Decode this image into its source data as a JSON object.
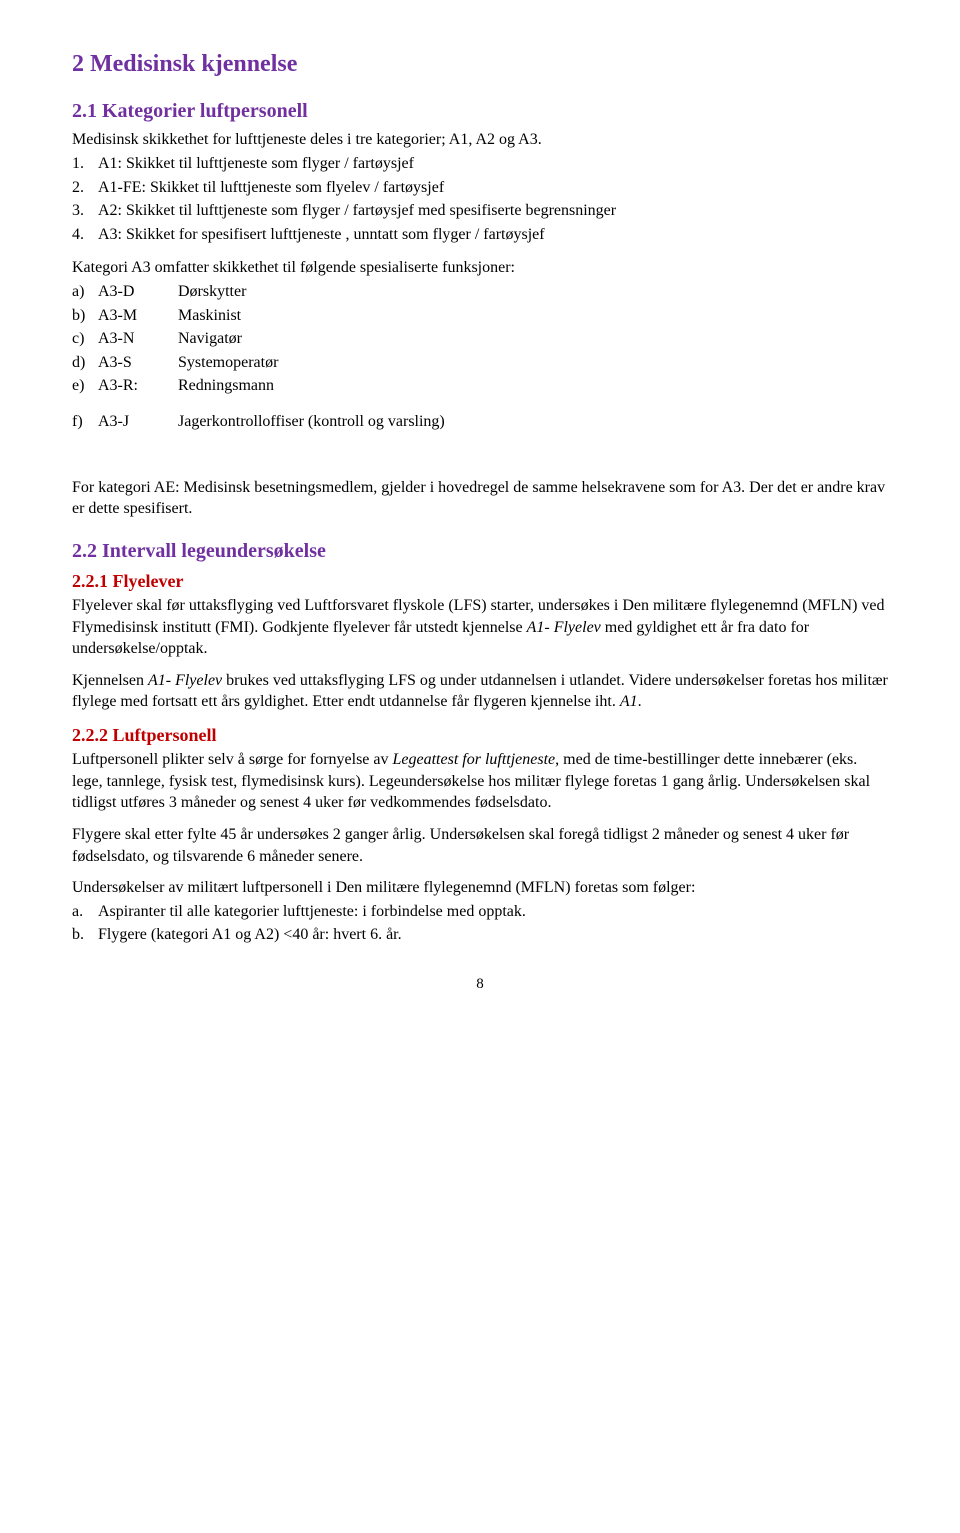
{
  "heading_main": "2 Medisinsk kjennelse",
  "section_2_1": {
    "title": "2.1 Kategorier luftpersonell",
    "intro": "Medisinsk skikkethet for lufttjeneste deles i tre kategorier; A1, A2 og A3.",
    "items": [
      {
        "num": "1.",
        "text": "A1: Skikket til lufttjeneste som flyger / fartøysjef"
      },
      {
        "num": "2.",
        "text": "A1-FE: Skikket til lufttjeneste som flyelev / fartøysjef"
      },
      {
        "num": "3.",
        "text": "A2: Skikket til lufttjeneste som flyger / fartøysjef med spesifiserte begrensninger"
      },
      {
        "num": "4.",
        "text": "A3: Skikket for spesifisert lufttjeneste , unntatt som flyger / fartøysjef"
      }
    ],
    "func_intro": "Kategori A3 omfatter skikkethet til følgende spesialiserte funksjoner:",
    "funcs": [
      {
        "letter": "a)",
        "code": "A3-D",
        "role": "Dørskytter"
      },
      {
        "letter": "b)",
        "code": "A3-M",
        "role": "Maskinist"
      },
      {
        "letter": "c)",
        "code": "A3-N",
        "role": "Navigatør"
      },
      {
        "letter": "d)",
        "code": "A3-S",
        "role": "Systemoperatør"
      },
      {
        "letter": "e)",
        "code": "A3-R:",
        "role": "Redningsmann"
      }
    ],
    "func_f": {
      "letter": "f)",
      "code": "A3-J",
      "role": "Jagerkontrolloffiser (kontroll og varsling)"
    },
    "note": "For kategori AE: Medisinsk besetningsmedlem, gjelder i hovedregel de samme helsekravene som for A3. Der det er andre krav er dette spesifisert."
  },
  "section_2_2": {
    "title": "2.2 Intervall legeundersøkelse"
  },
  "section_2_2_1": {
    "title": "2.2.1 Flyelever",
    "p1_a": "Flyelever skal før uttaksflyging ved Luftforsvaret flyskole (LFS) starter, undersøkes i Den militære flylegenemnd (MFLN) ved Flymedisinsk institutt (FMI). Godkjente flyelever får utstedt kjennelse ",
    "p1_b": "A1- Flyelev",
    "p1_c": " med gyldighet ett år fra dato for undersøkelse/opptak.",
    "p2_a": "Kjennelsen ",
    "p2_b": "A1- Flyelev",
    "p2_c": " brukes ved uttaksflyging LFS og under utdannelsen i utlandet. Videre undersøkelser foretas hos militær flylege med fortsatt ett års gyldighet. Etter endt utdannelse får flygeren kjennelse iht. ",
    "p2_d": "A1",
    "p2_e": "."
  },
  "section_2_2_2": {
    "title": "2.2.2 Luftpersonell",
    "p1_a": "Luftpersonell plikter selv å sørge for fornyelse av ",
    "p1_b": "Legeattest for lufttjeneste",
    "p1_c": ", med de time-bestillinger dette innebærer (eks. lege, tannlege, fysisk test, flymedisinsk kurs). Legeundersøkelse hos militær flylege foretas 1 gang årlig. Undersøkelsen skal tidligst utføres 3 måneder og senest 4 uker før vedkommendes fødselsdato.",
    "p2": "Flygere skal etter fylte 45 år undersøkes 2 ganger årlig. Undersøkelsen skal foregå tidligst 2 måneder og senest 4 uker før fødselsdato, og tilsvarende 6 måneder senere.",
    "p3": "Undersøkelser av militært luftpersonell i Den militære flylegenemnd (MFLN) foretas som følger:",
    "items": [
      {
        "letter": "a.",
        "text": "Aspiranter til alle kategorier lufttjeneste: i forbindelse med opptak."
      },
      {
        "letter": "b.",
        "text": "Flygere (kategori A1 og A2) <40 år: hvert 6. år."
      }
    ]
  },
  "page_number": "8"
}
